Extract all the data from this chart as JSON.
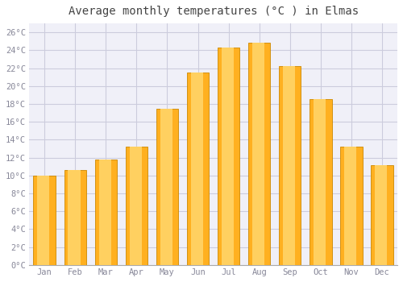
{
  "title": "Average monthly temperatures (°C ) in Elmas",
  "months": [
    "Jan",
    "Feb",
    "Mar",
    "Apr",
    "May",
    "Jun",
    "Jul",
    "Aug",
    "Sep",
    "Oct",
    "Nov",
    "Dec"
  ],
  "values": [
    10.0,
    10.6,
    11.8,
    13.2,
    17.5,
    21.5,
    24.3,
    24.8,
    22.2,
    18.5,
    13.2,
    11.2
  ],
  "bar_color_left": "#FFB020",
  "bar_color_center": "#FFD060",
  "bar_color_right": "#E07000",
  "bar_edge_color": "#CC8800",
  "background_color": "#FFFFFF",
  "plot_bg_color": "#F0F0F8",
  "grid_color": "#CCCCDD",
  "title_fontsize": 10,
  "tick_label_color": "#888899",
  "ylim": [
    0,
    27
  ],
  "ytick_step": 2
}
